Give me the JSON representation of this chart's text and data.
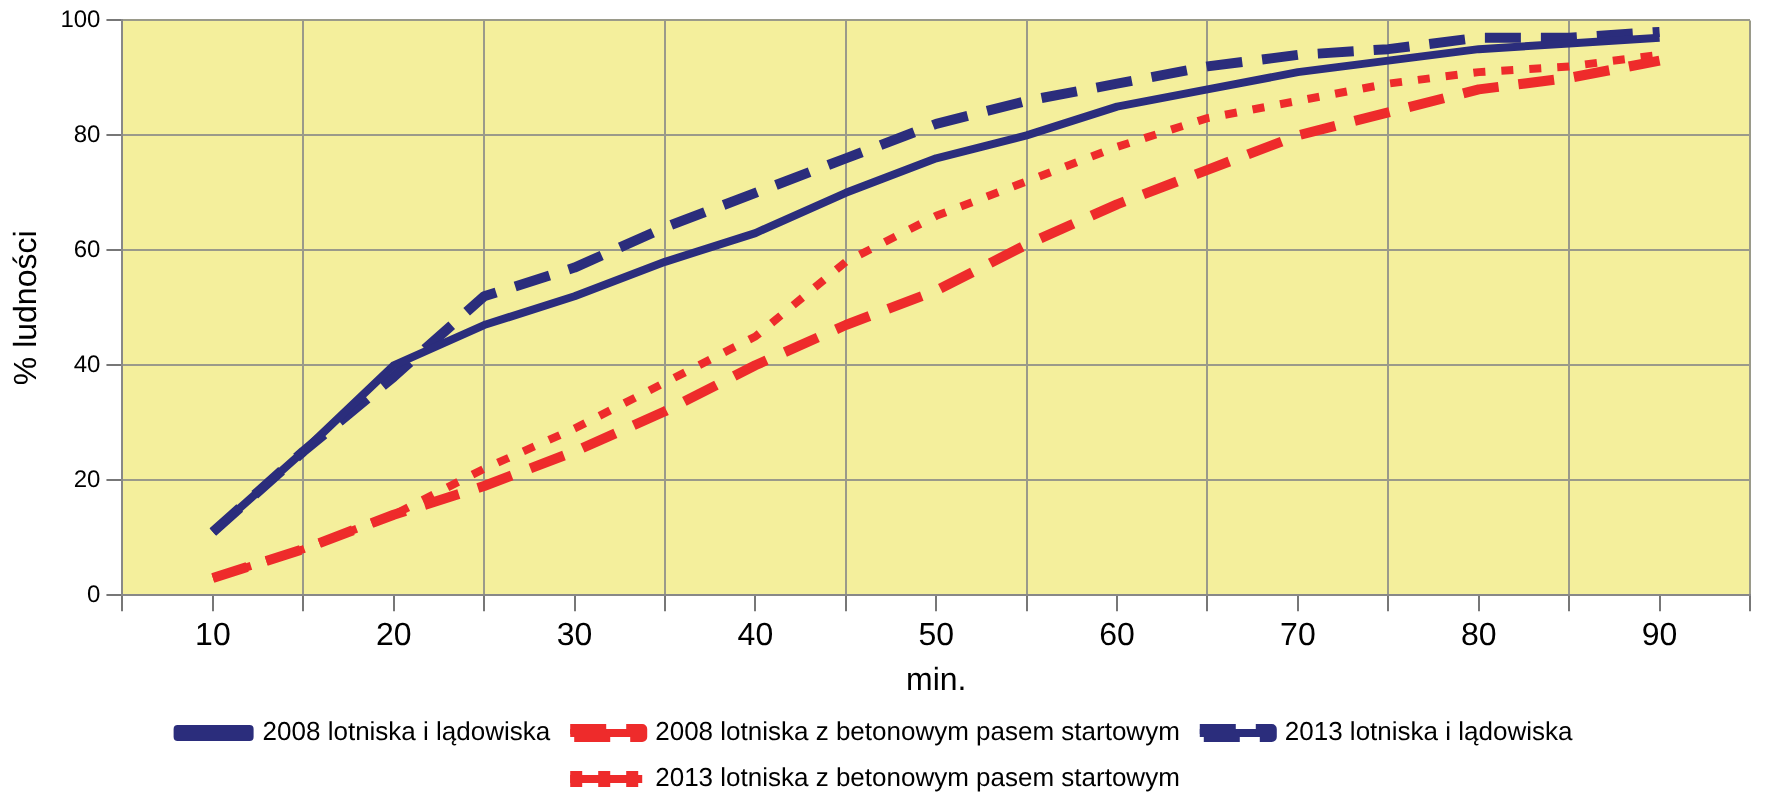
{
  "chart_data": {
    "type": "line",
    "xlabel": "min.",
    "ylabel": "% ludności",
    "x": [
      10,
      15,
      20,
      25,
      30,
      35,
      40,
      45,
      50,
      55,
      60,
      65,
      70,
      75,
      80,
      85,
      90
    ],
    "series": [
      {
        "name": "2008 lotniska i lądowiska",
        "color": "#2b2d7c",
        "line_style": "solid",
        "values": [
          11,
          25,
          40,
          47,
          52,
          58,
          63,
          70,
          76,
          80,
          85,
          88,
          91,
          93,
          95,
          96,
          97
        ]
      },
      {
        "name": "2008 lotniska z betonowym pasem startowym",
        "color": "#ee2b2b",
        "line_style": "dashed",
        "values": [
          3,
          8,
          14,
          19,
          25,
          32,
          40,
          47,
          53,
          61,
          68,
          74,
          80,
          84,
          88,
          90,
          93
        ]
      },
      {
        "name": "2013 lotniska i lądowiska",
        "color": "#2b2d7c",
        "line_style": "dashed",
        "values": [
          11,
          25,
          38,
          52,
          57,
          64,
          70,
          76,
          82,
          86,
          89,
          92,
          94,
          95,
          97,
          97,
          98
        ]
      },
      {
        "name": "2013 lotniska z betonowym pasem startowym",
        "color": "#ee2b2b",
        "line_style": "dotted",
        "values": [
          3,
          8,
          14,
          22,
          29,
          37,
          45,
          58,
          66,
          72,
          78,
          83,
          86,
          89,
          91,
          92,
          94
        ]
      }
    ],
    "xlim": [
      5,
      95
    ],
    "xticks": [
      {
        "value": 5,
        "label": null
      },
      {
        "value": 10,
        "label": "10"
      },
      {
        "value": 15,
        "label": null
      },
      {
        "value": 20,
        "label": "20"
      },
      {
        "value": 25,
        "label": null
      },
      {
        "value": 30,
        "label": "30"
      },
      {
        "value": 35,
        "label": null
      },
      {
        "value": 40,
        "label": "40"
      },
      {
        "value": 45,
        "label": null
      },
      {
        "value": 50,
        "label": "50"
      },
      {
        "value": 55,
        "label": null
      },
      {
        "value": 60,
        "label": "60"
      },
      {
        "value": 65,
        "label": null
      },
      {
        "value": 70,
        "label": "70"
      },
      {
        "value": 75,
        "label": null
      },
      {
        "value": 80,
        "label": "80"
      },
      {
        "value": 85,
        "label": null
      },
      {
        "value": 90,
        "label": "90"
      },
      {
        "value": 95,
        "label": null
      }
    ],
    "ylim": [
      0,
      100
    ],
    "yticks": [
      0,
      20,
      40,
      60,
      80,
      100
    ],
    "grid": true,
    "legend": "bottom",
    "marker": "none"
  }
}
